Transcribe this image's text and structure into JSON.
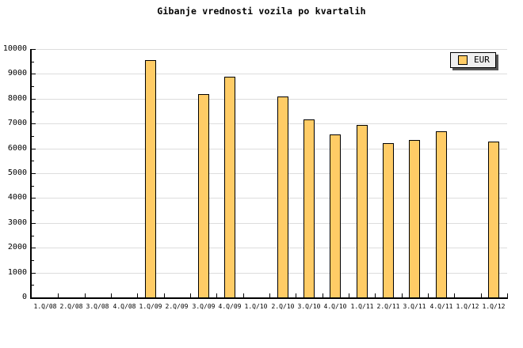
{
  "chart_data": {
    "type": "bar",
    "title": "Gibanje vrednosti vozila po kvartalih",
    "categories": [
      "1.Q/08",
      "2.Q/08",
      "3.Q/08",
      "4.Q/08",
      "1.Q/09",
      "2.Q/09",
      "3.Q/09",
      "4.Q/09",
      "1.Q/10",
      "2.Q/10",
      "3.Q/10",
      "4.Q/10",
      "1.Q/11",
      "2.Q/11",
      "3.Q/11",
      "4.Q/11",
      "1.Q/12",
      "1.Q/12"
    ],
    "series": [
      {
        "name": "EUR",
        "values": [
          null,
          null,
          null,
          null,
          9550,
          null,
          8200,
          8900,
          null,
          8100,
          7150,
          6550,
          6950,
          6200,
          6350,
          6700,
          null,
          6280
        ],
        "color": "#FFCC66",
        "border_color": "#000000"
      }
    ],
    "xlabel": "",
    "ylabel": "",
    "ylim": [
      0,
      10000
    ],
    "y_major_step": 1000,
    "y_minor_step": 500,
    "y_tick_labels": [
      "0",
      "1000",
      "2000",
      "3000",
      "4000",
      "5000",
      "6000",
      "7000",
      "8000",
      "9000",
      "10000"
    ],
    "grid": "horizontal major gridlines on, vertical off",
    "legend": {
      "position": "top-right",
      "entries": [
        {
          "label": "EUR",
          "swatch_color": "#FFCC66"
        }
      ]
    },
    "colors": {
      "background": "#FFFFFF",
      "axis": "#000000",
      "gridline": "#DDDDDD",
      "text": "#000000",
      "bar_fill": "#FFCC66",
      "bar_border": "#000000",
      "legend_background": "#EFEFEF",
      "legend_border": "#000000",
      "legend_shadow": "#555555"
    }
  }
}
